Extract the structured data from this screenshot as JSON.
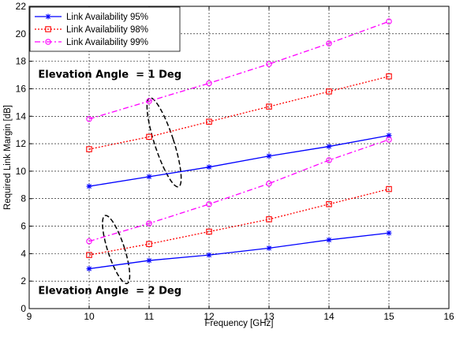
{
  "chart_data": {
    "type": "line",
    "title": "",
    "xlabel": "Frequency [GHz]",
    "ylabel": "Required Link Margin [dB]",
    "xlim": [
      9,
      16
    ],
    "ylim": [
      0,
      22
    ],
    "xticks": [
      9,
      10,
      11,
      12,
      13,
      14,
      15,
      16
    ],
    "yticks": [
      0,
      2,
      4,
      6,
      8,
      10,
      12,
      14,
      16,
      18,
      20,
      22
    ],
    "grid": true,
    "legend_position": "top-left",
    "x": [
      10,
      11,
      12,
      13,
      14,
      15
    ],
    "series": [
      {
        "name": "Link Availability 95%",
        "color": "#0000ff",
        "marker": "star",
        "linestyle": "solid",
        "group": "Elevation Angle = 1 Deg",
        "values": [
          8.9,
          9.6,
          10.3,
          11.1,
          11.8,
          12.6
        ]
      },
      {
        "name": "Link Availability 98%",
        "color": "#ff0000",
        "marker": "square",
        "linestyle": "dotted",
        "group": "Elevation Angle = 1 Deg",
        "values": [
          11.6,
          12.5,
          13.6,
          14.7,
          15.8,
          16.9
        ]
      },
      {
        "name": "Link Availability 99%",
        "color": "#ff00ff",
        "marker": "circle",
        "linestyle": "dashdot",
        "group": "Elevation Angle = 1 Deg",
        "values": [
          13.8,
          15.1,
          16.4,
          17.8,
          19.3,
          20.9
        ]
      },
      {
        "name": "Link Availability 95%",
        "color": "#0000ff",
        "marker": "star",
        "linestyle": "solid",
        "group": "Elevation Angle = 2 Deg",
        "values": [
          2.9,
          3.5,
          3.9,
          4.4,
          5.0,
          5.5
        ]
      },
      {
        "name": "Link Availability 98%",
        "color": "#ff0000",
        "marker": "square",
        "linestyle": "dotted",
        "group": "Elevation Angle = 2 Deg",
        "values": [
          3.9,
          4.7,
          5.6,
          6.5,
          7.6,
          8.7
        ]
      },
      {
        "name": "Link Availability 99%",
        "color": "#ff00ff",
        "marker": "circle",
        "linestyle": "dashdot",
        "group": "Elevation Angle = 2 Deg",
        "values": [
          4.9,
          6.2,
          7.6,
          9.1,
          10.8,
          12.3
        ]
      }
    ],
    "legend": [
      {
        "label": "Link Availability 95%",
        "color": "#0000ff",
        "marker": "star",
        "linestyle": "solid"
      },
      {
        "label": "Link Availability 98%",
        "color": "#ff0000",
        "marker": "square",
        "linestyle": "dotted"
      },
      {
        "label": "Link Availability 99%",
        "color": "#ff00ff",
        "marker": "circle",
        "linestyle": "dashdot"
      }
    ],
    "annotations": [
      {
        "text": "Elevation Angle  = 1 Deg",
        "x": 9.15,
        "y": 16.8
      },
      {
        "text": "Elevation Angle  = 2 Deg",
        "x": 9.15,
        "y": 1.05
      }
    ],
    "ellipses": [
      {
        "cx": 11.25,
        "cy": 12.1,
        "rx": 0.16,
        "ry": 3.4,
        "tilt": -18
      },
      {
        "cx": 10.45,
        "cy": 4.3,
        "rx": 0.14,
        "ry": 2.6,
        "tilt": -18
      }
    ]
  }
}
